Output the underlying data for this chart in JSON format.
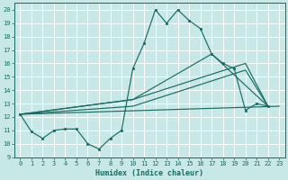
{
  "xlabel": "Humidex (Indice chaleur)",
  "xlim": [
    -0.5,
    23.5
  ],
  "ylim": [
    9,
    20.5
  ],
  "yticks": [
    9,
    10,
    11,
    12,
    13,
    14,
    15,
    16,
    17,
    18,
    19,
    20
  ],
  "xticks": [
    0,
    1,
    2,
    3,
    4,
    5,
    6,
    7,
    8,
    9,
    10,
    11,
    12,
    13,
    14,
    15,
    16,
    17,
    18,
    19,
    20,
    21,
    22,
    23
  ],
  "bg_color": "#c8e8e8",
  "line_color": "#1a6b62",
  "grid_color": "#ffffff",
  "line1_x": [
    0,
    1,
    2,
    3,
    4,
    5,
    6,
    7,
    8,
    9,
    10,
    11,
    12,
    13,
    14,
    15,
    16,
    17,
    18,
    19,
    20,
    21,
    22
  ],
  "line1_y": [
    12.2,
    10.9,
    10.4,
    11.0,
    11.1,
    11.1,
    10.0,
    9.6,
    10.4,
    11.0,
    15.6,
    17.5,
    20.0,
    19.0,
    20.0,
    19.2,
    18.6,
    16.7,
    16.0,
    15.6,
    12.5,
    13.0,
    12.8
  ],
  "line2_x": [
    0,
    23
  ],
  "line2_y": [
    12.2,
    12.8
  ],
  "line3_x": [
    0,
    10,
    20,
    22
  ],
  "line3_y": [
    12.2,
    12.8,
    15.5,
    12.8
  ],
  "line4_x": [
    0,
    10,
    20,
    22
  ],
  "line4_y": [
    12.2,
    13.3,
    16.0,
    12.8
  ],
  "line5_x": [
    0,
    10,
    17,
    22
  ],
  "line5_y": [
    12.2,
    13.3,
    16.7,
    12.8
  ]
}
